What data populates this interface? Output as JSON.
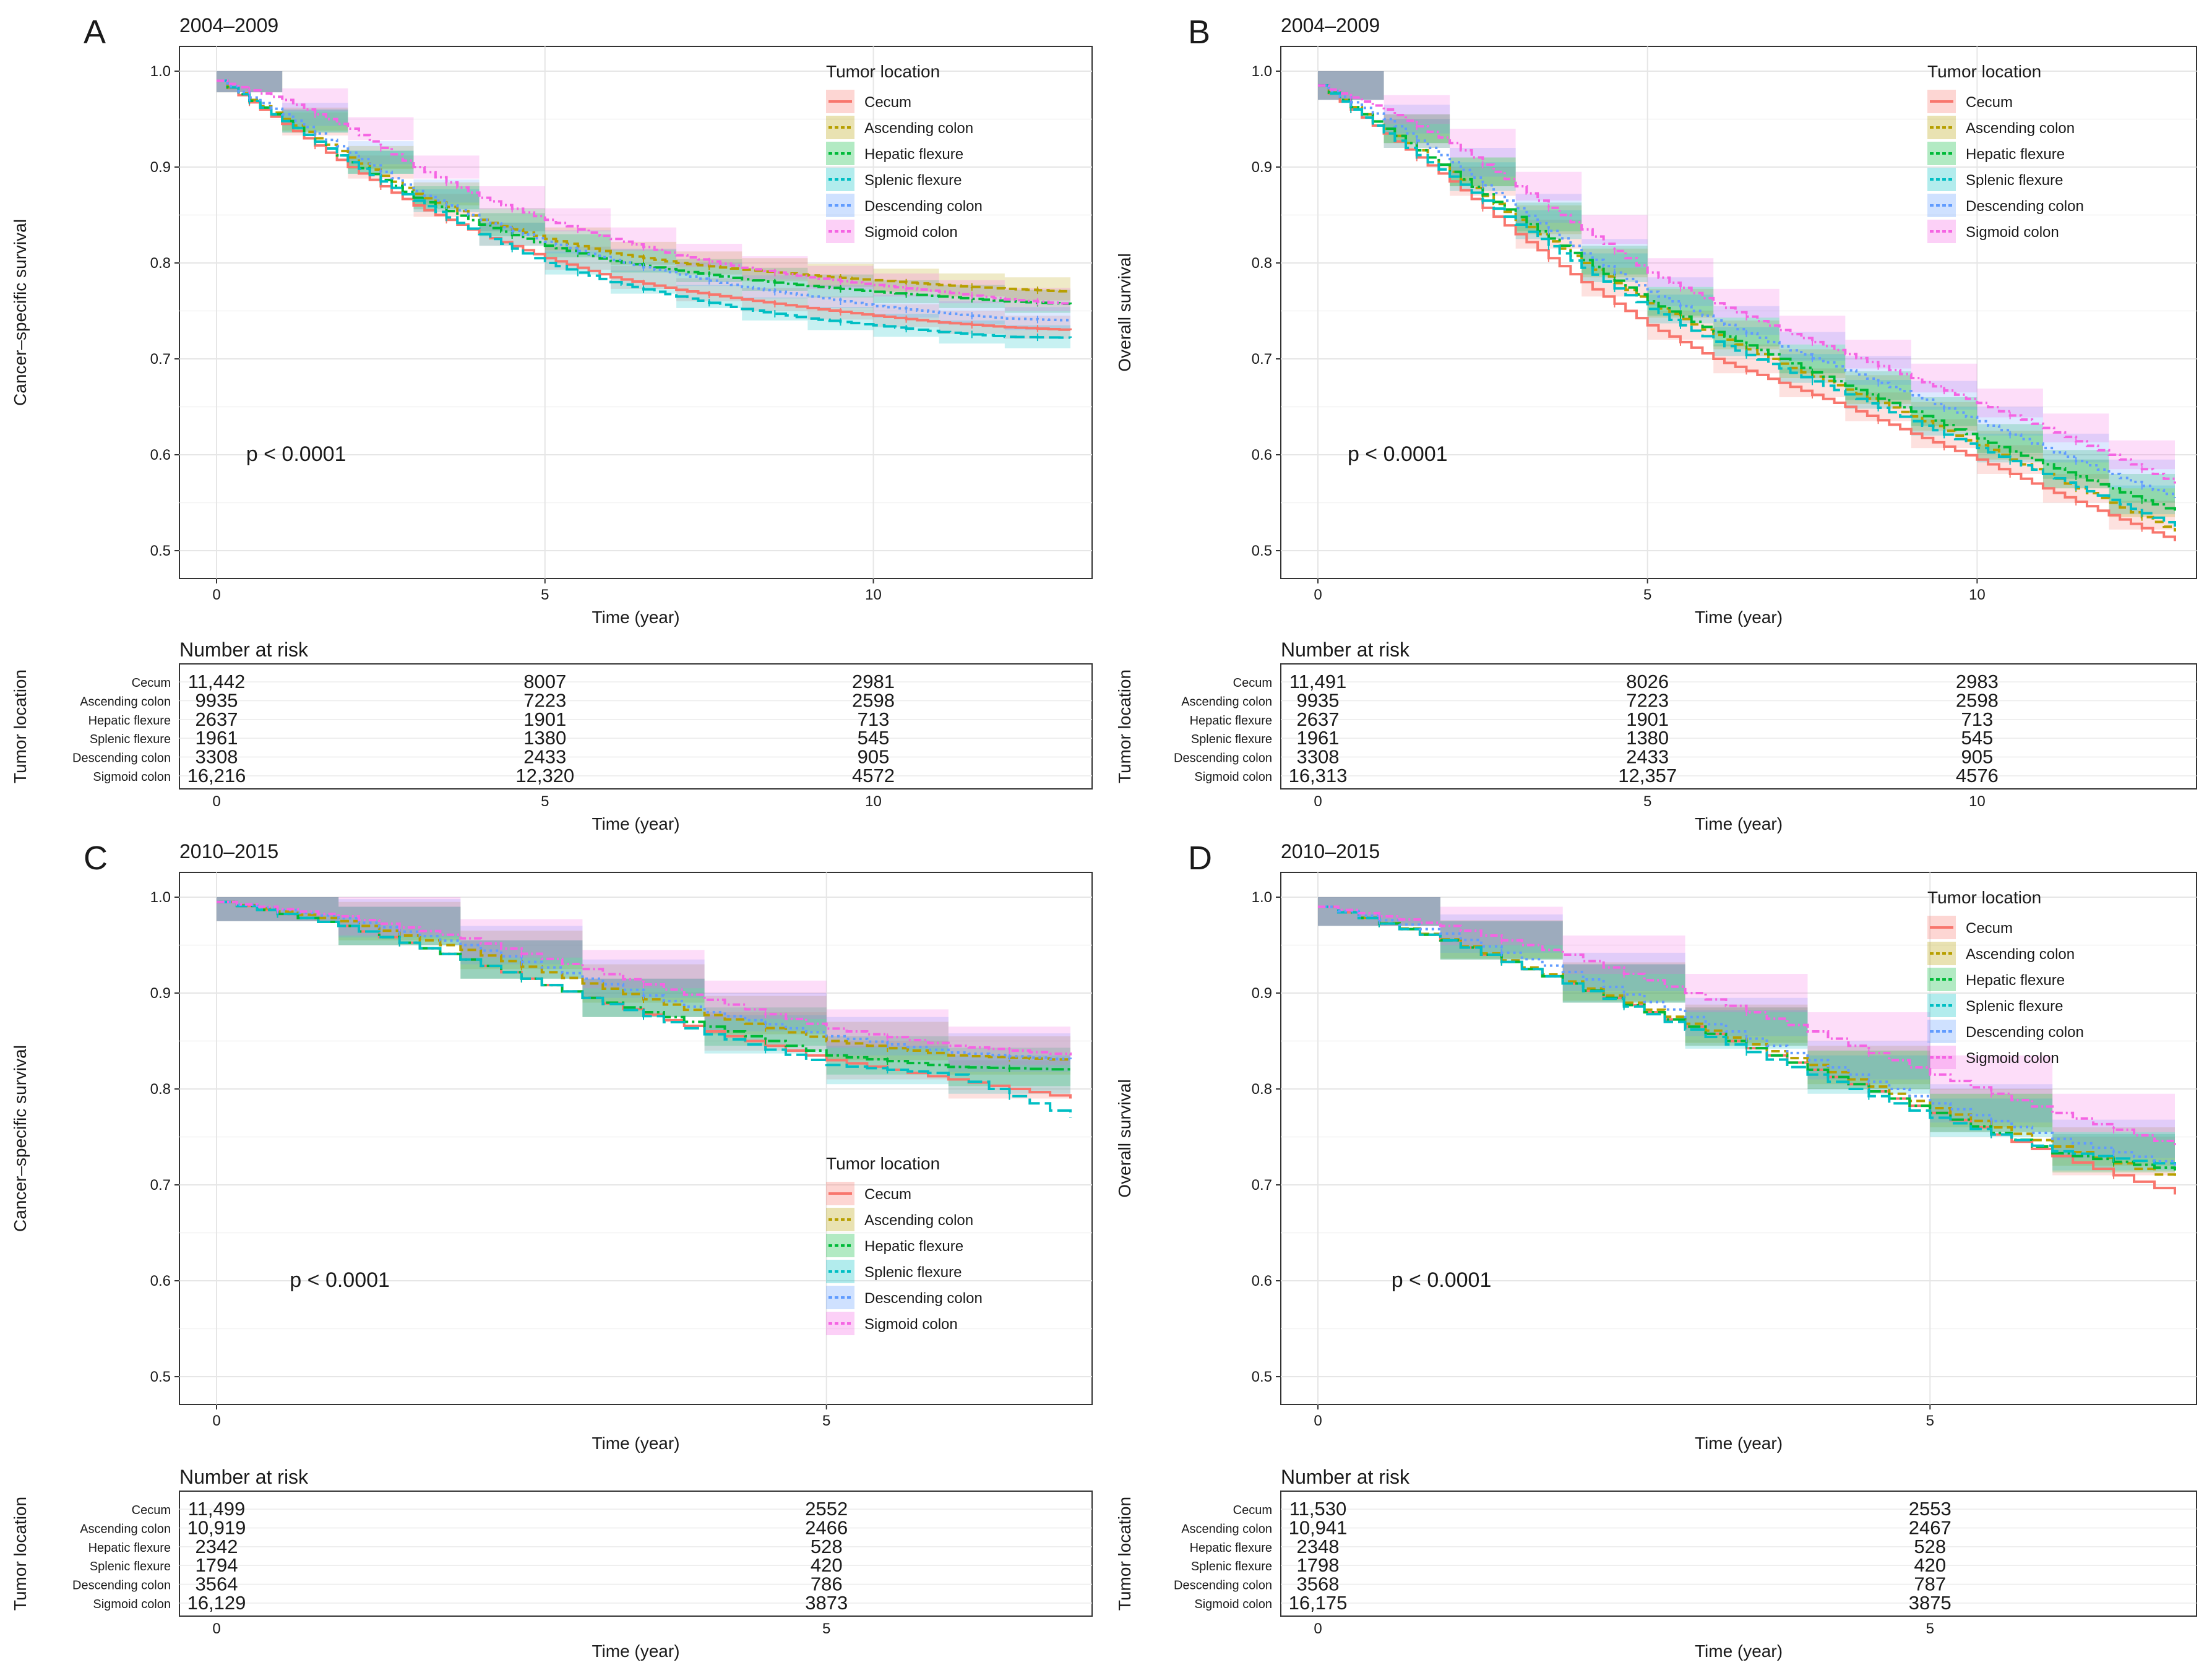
{
  "colors": {
    "Cecum": "#F8766D",
    "Ascending colon": "#B79F00",
    "Hepatic flexure": "#00BA38",
    "Splenic flexure": "#00BFC4",
    "Descending colon": "#619CFF",
    "Sigmoid colon": "#F564E3"
  },
  "common": {
    "legend_title": "Tumor location",
    "risk_title": "Number at risk",
    "risk_ylabel": "Tumor location",
    "xlabel": "Time (year)",
    "pvalue": "p < 0.0001"
  },
  "chart_data": [
    {
      "id": "A",
      "letter": "A",
      "type": "line",
      "title": "2004–2009",
      "ylabel": "Cancer–specific survival",
      "xlabel": "Time (year)",
      "xlim": [
        0,
        13
      ],
      "ylim": [
        0.5,
        1.0
      ],
      "xticks": [
        0,
        5,
        10
      ],
      "yticks": [
        0.5,
        0.6,
        0.7,
        0.8,
        0.9,
        1.0
      ],
      "ytick_labels": [
        "0.5",
        "0.6",
        "0.7",
        "0.8",
        "0.9",
        "1.0"
      ],
      "legend_position": "top-right",
      "pvalue": "p < 0.0001",
      "band_halfwidth": 0.012,
      "series": [
        {
          "name": "Cecum",
          "x": [
            0,
            1,
            2,
            3,
            4,
            5,
            6,
            7,
            8,
            9,
            10,
            11,
            12,
            13
          ],
          "y": [
            0.99,
            0.945,
            0.9,
            0.86,
            0.83,
            0.805,
            0.785,
            0.772,
            0.762,
            0.753,
            0.745,
            0.738,
            0.733,
            0.73
          ]
        },
        {
          "name": "Ascending colon",
          "x": [
            0,
            1,
            2,
            3,
            4,
            5,
            6,
            7,
            8,
            9,
            10,
            11,
            12,
            13
          ],
          "y": [
            0.99,
            0.95,
            0.91,
            0.872,
            0.845,
            0.825,
            0.81,
            0.8,
            0.793,
            0.787,
            0.782,
            0.777,
            0.773,
            0.77
          ]
        },
        {
          "name": "Hepatic flexure",
          "x": [
            0,
            1,
            2,
            3,
            4,
            5,
            6,
            7,
            8,
            9,
            10,
            11,
            12,
            13
          ],
          "y": [
            0.99,
            0.948,
            0.905,
            0.868,
            0.84,
            0.818,
            0.802,
            0.792,
            0.783,
            0.776,
            0.77,
            0.765,
            0.76,
            0.757
          ]
        },
        {
          "name": "Splenic flexure",
          "x": [
            0,
            1,
            2,
            3,
            4,
            5,
            6,
            7,
            8,
            9,
            10,
            11,
            12,
            13
          ],
          "y": [
            0.99,
            0.948,
            0.905,
            0.865,
            0.83,
            0.8,
            0.78,
            0.765,
            0.752,
            0.742,
            0.735,
            0.728,
            0.723,
            0.722
          ]
        },
        {
          "name": "Descending colon",
          "x": [
            0,
            1,
            2,
            3,
            4,
            5,
            6,
            7,
            8,
            9,
            10,
            11,
            12,
            13
          ],
          "y": [
            0.99,
            0.955,
            0.915,
            0.875,
            0.845,
            0.822,
            0.803,
            0.788,
            0.775,
            0.765,
            0.755,
            0.748,
            0.742,
            0.74
          ]
        },
        {
          "name": "Sigmoid colon",
          "x": [
            0,
            1,
            2,
            3,
            4,
            5,
            6,
            7,
            8,
            9,
            10,
            11,
            12,
            13
          ],
          "y": [
            0.99,
            0.97,
            0.94,
            0.9,
            0.868,
            0.845,
            0.825,
            0.808,
            0.795,
            0.785,
            0.777,
            0.77,
            0.762,
            0.757
          ]
        }
      ],
      "risk_table": {
        "times": [
          0,
          5,
          10
        ],
        "rows": [
          {
            "name": "Cecum",
            "values": [
              "11,442",
              "8007",
              "2981"
            ]
          },
          {
            "name": "Ascending colon",
            "values": [
              "9935",
              "7223",
              "2598"
            ]
          },
          {
            "name": "Hepatic flexure",
            "values": [
              "2637",
              "1901",
              "713"
            ]
          },
          {
            "name": "Splenic flexure",
            "values": [
              "1961",
              "1380",
              "545"
            ]
          },
          {
            "name": "Descending colon",
            "values": [
              "3308",
              "2433",
              "905"
            ]
          },
          {
            "name": "Sigmoid colon",
            "values": [
              "16,216",
              "12,320",
              "4572"
            ]
          }
        ]
      }
    },
    {
      "id": "B",
      "letter": "B",
      "type": "line",
      "title": "2004–2009",
      "ylabel": "Overall survival",
      "xlabel": "Time (year)",
      "xlim": [
        0,
        13
      ],
      "ylim": [
        0.5,
        1.0
      ],
      "xticks": [
        0,
        5,
        10
      ],
      "yticks": [
        0.5,
        0.6,
        0.7,
        0.8,
        0.9,
        1.0
      ],
      "ytick_labels": [
        "0.5",
        "0.6",
        "0.7",
        "0.8",
        "0.9",
        "1.0"
      ],
      "legend_position": "top-right",
      "pvalue": "p < 0.0001",
      "band_halfwidth": 0.015,
      "series": [
        {
          "name": "Cecum",
          "x": [
            0,
            1,
            2,
            3,
            4,
            5,
            6,
            7,
            8,
            9,
            10,
            11,
            12,
            13
          ],
          "y": [
            0.985,
            0.935,
            0.885,
            0.83,
            0.78,
            0.735,
            0.7,
            0.675,
            0.65,
            0.622,
            0.595,
            0.565,
            0.537,
            0.51
          ]
        },
        {
          "name": "Ascending colon",
          "x": [
            0,
            1,
            2,
            3,
            4,
            5,
            6,
            7,
            8,
            9,
            10,
            11,
            12,
            13
          ],
          "y": [
            0.985,
            0.94,
            0.895,
            0.845,
            0.8,
            0.758,
            0.725,
            0.695,
            0.668,
            0.64,
            0.61,
            0.58,
            0.55,
            0.52
          ]
        },
        {
          "name": "Hepatic flexure",
          "x": [
            0,
            1,
            2,
            3,
            4,
            5,
            6,
            7,
            8,
            9,
            10,
            11,
            12,
            13
          ],
          "y": [
            0.985,
            0.94,
            0.895,
            0.848,
            0.803,
            0.76,
            0.728,
            0.7,
            0.672,
            0.645,
            0.617,
            0.59,
            0.565,
            0.54
          ]
        },
        {
          "name": "Splenic flexure",
          "x": [
            0,
            1,
            2,
            3,
            4,
            5,
            6,
            7,
            8,
            9,
            10,
            11,
            12,
            13
          ],
          "y": [
            0.985,
            0.935,
            0.89,
            0.84,
            0.795,
            0.752,
            0.718,
            0.69,
            0.663,
            0.635,
            0.607,
            0.58,
            0.553,
            0.525
          ]
        },
        {
          "name": "Descending colon",
          "x": [
            0,
            1,
            2,
            3,
            4,
            5,
            6,
            7,
            8,
            9,
            10,
            11,
            12,
            13
          ],
          "y": [
            0.985,
            0.95,
            0.905,
            0.857,
            0.81,
            0.77,
            0.74,
            0.713,
            0.688,
            0.662,
            0.635,
            0.607,
            0.58,
            0.555
          ]
        },
        {
          "name": "Sigmoid colon",
          "x": [
            0,
            1,
            2,
            3,
            4,
            5,
            6,
            7,
            8,
            9,
            10,
            11,
            12,
            13
          ],
          "y": [
            0.985,
            0.96,
            0.925,
            0.88,
            0.835,
            0.79,
            0.758,
            0.73,
            0.705,
            0.68,
            0.654,
            0.628,
            0.6,
            0.57
          ]
        }
      ],
      "risk_table": {
        "times": [
          0,
          5,
          10
        ],
        "rows": [
          {
            "name": "Cecum",
            "values": [
              "11,491",
              "8026",
              "2983"
            ]
          },
          {
            "name": "Ascending colon",
            "values": [
              "9935",
              "7223",
              "2598"
            ]
          },
          {
            "name": "Hepatic flexure",
            "values": [
              "2637",
              "1901",
              "713"
            ]
          },
          {
            "name": "Splenic flexure",
            "values": [
              "1961",
              "1380",
              "545"
            ]
          },
          {
            "name": "Descending colon",
            "values": [
              "3308",
              "2433",
              "905"
            ]
          },
          {
            "name": "Sigmoid colon",
            "values": [
              "16,313",
              "12,357",
              "4576"
            ]
          }
        ]
      }
    },
    {
      "id": "C",
      "letter": "C",
      "type": "line",
      "title": "2010–2015",
      "ylabel": "Cancer–specific survival",
      "xlabel": "Time (year)",
      "xlim": [
        0,
        7
      ],
      "ylim": [
        0.5,
        1.0
      ],
      "xticks": [
        0,
        5
      ],
      "yticks": [
        0.5,
        0.6,
        0.7,
        0.8,
        0.9,
        1.0
      ],
      "ytick_labels": [
        "0.5",
        "0.6",
        "0.7",
        "0.8",
        "0.9",
        "1.0"
      ],
      "legend_position": "bottom-right",
      "pvalue": "p < 0.0001",
      "band_halfwidth": 0.02,
      "series": [
        {
          "name": "Cecum",
          "x": [
            0,
            1,
            2,
            3,
            4,
            5,
            6,
            7
          ],
          "y": [
            0.995,
            0.97,
            0.935,
            0.895,
            0.86,
            0.83,
            0.81,
            0.79
          ]
        },
        {
          "name": "Ascending colon",
          "x": [
            0,
            1,
            2,
            3,
            4,
            5,
            6,
            7
          ],
          "y": [
            0.995,
            0.975,
            0.945,
            0.91,
            0.877,
            0.85,
            0.835,
            0.83
          ]
        },
        {
          "name": "Hepatic flexure",
          "x": [
            0,
            1,
            2,
            3,
            4,
            5,
            6,
            7
          ],
          "y": [
            0.995,
            0.97,
            0.935,
            0.895,
            0.865,
            0.835,
            0.823,
            0.82
          ]
        },
        {
          "name": "Splenic flexure",
          "x": [
            0,
            1,
            2,
            3,
            4,
            5,
            6,
            7
          ],
          "y": [
            0.995,
            0.97,
            0.935,
            0.895,
            0.857,
            0.825,
            0.815,
            0.77
          ]
        },
        {
          "name": "Descending colon",
          "x": [
            0,
            1,
            2,
            3,
            4,
            5,
            6,
            7
          ],
          "y": [
            0.995,
            0.978,
            0.95,
            0.915,
            0.88,
            0.855,
            0.838,
            0.83
          ]
        },
        {
          "name": "Sigmoid colon",
          "x": [
            0,
            1,
            2,
            3,
            4,
            5,
            6,
            7
          ],
          "y": [
            0.995,
            0.98,
            0.957,
            0.925,
            0.893,
            0.863,
            0.845,
            0.835
          ]
        }
      ],
      "risk_table": {
        "times": [
          0,
          5
        ],
        "rows": [
          {
            "name": "Cecum",
            "values": [
              "11,499",
              "2552"
            ]
          },
          {
            "name": "Ascending colon",
            "values": [
              "10,919",
              "2466"
            ]
          },
          {
            "name": "Hepatic flexure",
            "values": [
              "2342",
              "528"
            ]
          },
          {
            "name": "Splenic flexure",
            "values": [
              "1794",
              "420"
            ]
          },
          {
            "name": "Descending colon",
            "values": [
              "3564",
              "786"
            ]
          },
          {
            "name": "Sigmoid colon",
            "values": [
              "16,129",
              "3873"
            ]
          }
        ]
      }
    },
    {
      "id": "D",
      "letter": "D",
      "type": "line",
      "title": "2010–2015",
      "ylabel": "Overall survival",
      "xlabel": "Time (year)",
      "xlim": [
        0,
        7
      ],
      "ylim": [
        0.5,
        1.0
      ],
      "xticks": [
        0,
        5
      ],
      "yticks": [
        0.5,
        0.6,
        0.7,
        0.8,
        0.9,
        1.0
      ],
      "ytick_labels": [
        "0.5",
        "0.6",
        "0.7",
        "0.8",
        "0.9",
        "1.0"
      ],
      "legend_position": "top-right",
      "pvalue": "p < 0.0001",
      "band_halfwidth": 0.02,
      "series": [
        {
          "name": "Cecum",
          "x": [
            0,
            1,
            2,
            3,
            4,
            5,
            6,
            7
          ],
          "y": [
            0.99,
            0.955,
            0.91,
            0.865,
            0.82,
            0.775,
            0.73,
            0.69
          ]
        },
        {
          "name": "Ascending colon",
          "x": [
            0,
            1,
            2,
            3,
            4,
            5,
            6,
            7
          ],
          "y": [
            0.99,
            0.956,
            0.912,
            0.868,
            0.825,
            0.78,
            0.74,
            0.705
          ]
        },
        {
          "name": "Hepatic flexure",
          "x": [
            0,
            1,
            2,
            3,
            4,
            5,
            6,
            7
          ],
          "y": [
            0.99,
            0.955,
            0.91,
            0.865,
            0.82,
            0.775,
            0.733,
            0.715
          ]
        },
        {
          "name": "Splenic flexure",
          "x": [
            0,
            1,
            2,
            3,
            4,
            5,
            6,
            7
          ],
          "y": [
            0.99,
            0.955,
            0.91,
            0.862,
            0.815,
            0.77,
            0.735,
            0.72
          ]
        },
        {
          "name": "Descending colon",
          "x": [
            0,
            1,
            2,
            3,
            4,
            5,
            6,
            7
          ],
          "y": [
            0.99,
            0.962,
            0.922,
            0.875,
            0.83,
            0.785,
            0.748,
            0.72
          ]
        },
        {
          "name": "Sigmoid colon",
          "x": [
            0,
            1,
            2,
            3,
            4,
            5,
            6,
            7
          ],
          "y": [
            0.99,
            0.97,
            0.94,
            0.9,
            0.86,
            0.815,
            0.775,
            0.74
          ]
        }
      ],
      "risk_table": {
        "times": [
          0,
          5
        ],
        "rows": [
          {
            "name": "Cecum",
            "values": [
              "11,530",
              "2553"
            ]
          },
          {
            "name": "Ascending colon",
            "values": [
              "10,941",
              "2467"
            ]
          },
          {
            "name": "Hepatic flexure",
            "values": [
              "2348",
              "528"
            ]
          },
          {
            "name": "Splenic flexure",
            "values": [
              "1798",
              "420"
            ]
          },
          {
            "name": "Descending colon",
            "values": [
              "3568",
              "787"
            ]
          },
          {
            "name": "Sigmoid colon",
            "values": [
              "16,175",
              "3875"
            ]
          }
        ]
      }
    }
  ]
}
